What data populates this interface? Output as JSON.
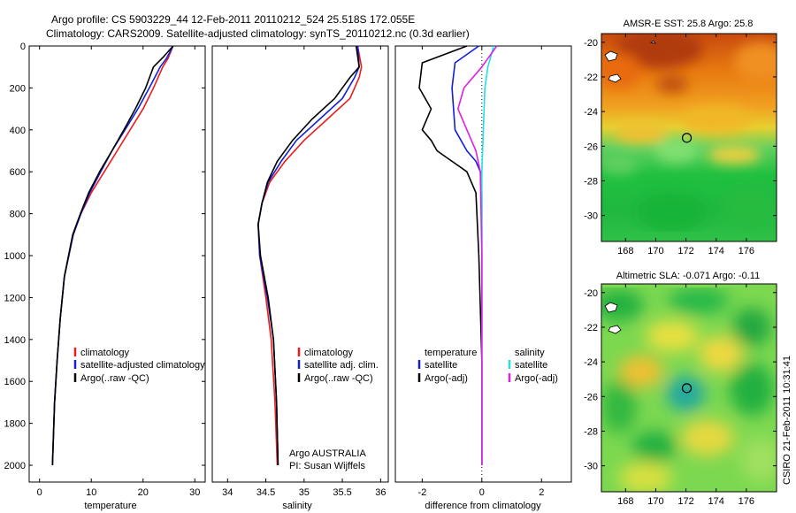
{
  "header": {
    "line1": "Argo profile: CS 5903229_44 12-Feb-2011 20110212_524 25.518S 172.055E",
    "line2": "Climatology: CARS2009. Satellite-adjusted climatology: synTS_20110212.nc (0.3d earlier)"
  },
  "colors": {
    "climatology": "#ee1c1c",
    "satellite": "#1020d8",
    "argo": "#000000",
    "satellite_salinity": "#20e0e8",
    "argo_salinity": "#e020e0"
  },
  "chart_data": [
    {
      "type": "line",
      "xlabel": "temperature",
      "ylabel": "",
      "xlim": [
        -2,
        32
      ],
      "ylim": [
        2080,
        0
      ],
      "xticks": [
        "0",
        "10",
        "20",
        "30"
      ],
      "yticks": [
        "0",
        "200",
        "400",
        "600",
        "800",
        "1000",
        "1200",
        "1400",
        "1600",
        "1800",
        "2000"
      ],
      "legend": [
        "climatology",
        "satellite-adjusted climatology",
        "Argo(..raw -QC)"
      ],
      "legend_position": "lower-right",
      "series": [
        {
          "name": "climatology",
          "x": [
            25.8,
            24.8,
            23.8,
            22.0,
            20.0,
            17.5,
            15.0,
            12.5,
            10.0,
            8.0,
            6.5,
            4.8,
            4.0,
            3.4,
            2.9,
            2.5
          ],
          "y": [
            0,
            60,
            100,
            200,
            300,
            400,
            500,
            600,
            700,
            800,
            900,
            1100,
            1300,
            1500,
            1700,
            2000
          ]
        },
        {
          "name": "satellite-adjusted climatology",
          "x": [
            25.8,
            24.5,
            23.3,
            21.2,
            19.0,
            16.5,
            14.0,
            11.8,
            9.7,
            8.0,
            6.5,
            4.8,
            4.0,
            3.4,
            2.9,
            2.5
          ],
          "y": [
            0,
            60,
            100,
            200,
            300,
            400,
            500,
            600,
            700,
            800,
            900,
            1100,
            1300,
            1500,
            1700,
            2000
          ]
        },
        {
          "name": "Argo(..raw -QC)",
          "x": [
            25.8,
            24.0,
            22.0,
            20.5,
            18.5,
            16.3,
            14.0,
            11.6,
            9.5,
            7.9,
            6.4,
            4.8,
            4.0,
            3.4,
            2.9,
            2.5
          ],
          "y": [
            0,
            50,
            100,
            200,
            300,
            400,
            500,
            600,
            700,
            800,
            900,
            1100,
            1300,
            1500,
            1700,
            2000
          ]
        }
      ]
    },
    {
      "type": "line",
      "xlabel": "salinity",
      "ylabel": "",
      "xlim": [
        33.8,
        36.1
      ],
      "ylim": [
        2080,
        0
      ],
      "xticks": [
        "34",
        "34.5",
        "35",
        "35.5",
        "36"
      ],
      "legend": [
        "climatology",
        "satellite adj. clim.",
        "Argo(..raw -QC)"
      ],
      "legend_position": "lower-right",
      "annotations": [
        "Argo AUSTRALIA",
        "PI: Susan Wijffels"
      ],
      "series": [
        {
          "name": "climatology",
          "x": [
            35.7,
            35.75,
            35.72,
            35.6,
            35.3,
            35.0,
            34.75,
            34.55,
            34.45,
            34.4,
            34.42,
            34.5,
            34.57,
            34.62,
            34.65
          ],
          "y": [
            0,
            100,
            150,
            250,
            350,
            450,
            550,
            650,
            750,
            850,
            1000,
            1200,
            1400,
            1700,
            2000
          ]
        },
        {
          "name": "satellite adj. clim.",
          "x": [
            35.7,
            35.72,
            35.66,
            35.5,
            35.2,
            34.9,
            34.7,
            34.53,
            34.45,
            34.4,
            34.42,
            34.52,
            34.6,
            34.64,
            34.66
          ],
          "y": [
            0,
            100,
            150,
            250,
            350,
            450,
            550,
            650,
            750,
            850,
            1000,
            1200,
            1400,
            1700,
            2000
          ]
        },
        {
          "name": "Argo(..raw -QC)",
          "x": [
            35.68,
            35.72,
            35.6,
            35.4,
            35.1,
            34.85,
            34.65,
            34.52,
            34.45,
            34.4,
            34.43,
            34.53,
            34.6,
            34.64,
            34.66
          ],
          "y": [
            0,
            100,
            150,
            250,
            350,
            450,
            550,
            650,
            750,
            850,
            1000,
            1200,
            1400,
            1700,
            2000
          ]
        }
      ]
    },
    {
      "type": "line",
      "xlabel": "difference from climatology",
      "ylabel": "",
      "xlim": [
        -2.9,
        3.0
      ],
      "ylim": [
        2080,
        0
      ],
      "xticks": [
        "-2",
        "0",
        "2"
      ],
      "legend": [
        "temperature",
        "satellite",
        "Argo(-adj)",
        "salinity",
        "satellite",
        "Argo(-adj)"
      ],
      "legend_position": "lower",
      "series": [
        {
          "name": "temperature satellite",
          "x": [
            -0.1,
            -0.9,
            -1.0,
            -0.95,
            -0.9,
            -0.7,
            -0.5,
            -0.2,
            -0.05,
            0,
            0,
            0,
            0
          ],
          "y": [
            0,
            80,
            200,
            300,
            400,
            450,
            500,
            550,
            600,
            700,
            1000,
            1500,
            2000
          ]
        },
        {
          "name": "temperature Argo(-adj)",
          "x": [
            -0.5,
            -2.0,
            -2.1,
            -1.7,
            -2.0,
            -1.7,
            -1.5,
            -1.0,
            -0.5,
            -0.2,
            -0.1,
            0,
            0
          ],
          "y": [
            0,
            80,
            200,
            300,
            400,
            450,
            500,
            550,
            600,
            700,
            1000,
            1500,
            2000
          ]
        },
        {
          "name": "salinity satellite",
          "x": [
            0.4,
            0.2,
            0.1,
            0.05,
            0,
            0,
            0,
            0,
            0
          ],
          "y": [
            0,
            100,
            200,
            400,
            600,
            800,
            1200,
            1600,
            2000
          ]
        },
        {
          "name": "salinity Argo(-adj)",
          "x": [
            0.5,
            0.0,
            -0.6,
            -0.8,
            -0.5,
            -0.2,
            -0.05,
            0,
            0
          ],
          "y": [
            0,
            100,
            200,
            300,
            400,
            500,
            600,
            1000,
            2000
          ]
        }
      ]
    },
    {
      "type": "heatmap",
      "title": "AMSR-E SST: 25.8 Argo: 25.8",
      "xlim": [
        166.4,
        178.0
      ],
      "ylim": [
        -31.5,
        -19.5
      ],
      "xticks": [
        "168",
        "170",
        "172",
        "174",
        "176"
      ],
      "yticks": [
        "-20",
        "-22",
        "-24",
        "-26",
        "-28",
        "-30"
      ],
      "marker": {
        "lon": 172.055,
        "lat": -25.518
      }
    },
    {
      "type": "heatmap",
      "title": "Altimetric SLA: -0.071 Argo: -0.11",
      "xlim": [
        166.4,
        178.0
      ],
      "ylim": [
        -31.5,
        -19.5
      ],
      "xticks": [
        "168",
        "170",
        "172",
        "174",
        "176"
      ],
      "yticks": [
        "-20",
        "-22",
        "-24",
        "-26",
        "-28",
        "-30"
      ],
      "marker": {
        "lon": 172.055,
        "lat": -25.518
      }
    }
  ],
  "footer": {
    "stamp": "CSIRO 21-Feb-2011 10:31:41"
  }
}
